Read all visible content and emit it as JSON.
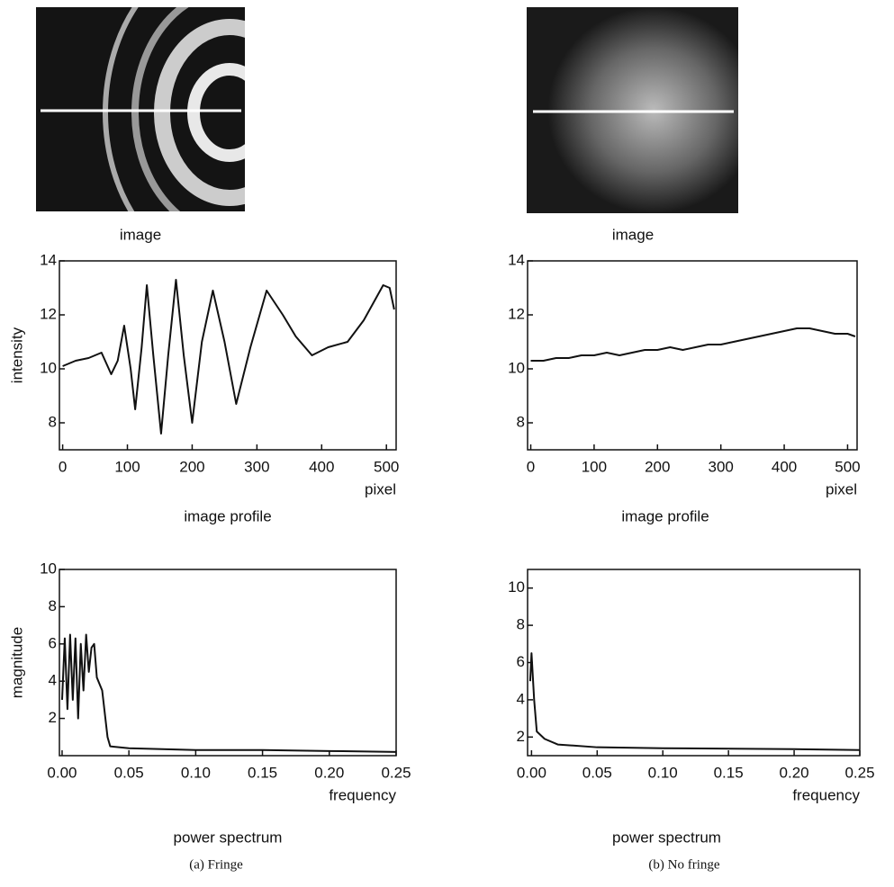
{
  "image_captions": [
    "image",
    "image"
  ],
  "panel_captions": [
    "(a) Fringe",
    "(b) No fringe"
  ],
  "chart_data": [
    {
      "type": "line",
      "caption": "image profile",
      "xlabel": "pixel",
      "ylabel": "intensity",
      "xlim": [
        -5,
        515
      ],
      "ylim": [
        7,
        14
      ],
      "xticks": [
        0,
        100,
        200,
        300,
        400,
        500
      ],
      "yticks": [
        8,
        10,
        12,
        14
      ],
      "series": [
        {
          "color": "#111111",
          "x": [
            0,
            20,
            40,
            60,
            75,
            85,
            95,
            105,
            112,
            122,
            130,
            140,
            152,
            163,
            175,
            187,
            200,
            215,
            232,
            250,
            268,
            290,
            315,
            340,
            360,
            385,
            410,
            440,
            465,
            495,
            505,
            512
          ],
          "values": [
            10.1,
            10.3,
            10.4,
            10.6,
            9.8,
            10.3,
            11.6,
            10.0,
            8.5,
            10.8,
            13.1,
            10.5,
            7.6,
            10.5,
            13.3,
            10.5,
            8.0,
            11.0,
            12.9,
            11.0,
            8.7,
            10.8,
            12.9,
            12.0,
            11.2,
            10.5,
            10.8,
            11.0,
            11.8,
            13.1,
            13.0,
            12.2
          ]
        }
      ]
    },
    {
      "type": "line",
      "caption": "image profile",
      "xlabel": "pixel",
      "xlim": [
        -5,
        515
      ],
      "ylim": [
        7,
        14
      ],
      "xticks": [
        0,
        100,
        200,
        300,
        400,
        500
      ],
      "yticks": [
        8,
        10,
        12,
        14
      ],
      "series": [
        {
          "color": "#111111",
          "x": [
            0,
            20,
            40,
            60,
            80,
            100,
            120,
            140,
            160,
            180,
            200,
            220,
            240,
            260,
            280,
            300,
            320,
            340,
            360,
            380,
            400,
            420,
            440,
            460,
            480,
            500,
            512
          ],
          "values": [
            10.3,
            10.3,
            10.4,
            10.4,
            10.5,
            10.5,
            10.6,
            10.5,
            10.6,
            10.7,
            10.7,
            10.8,
            10.7,
            10.8,
            10.9,
            10.9,
            11.0,
            11.1,
            11.2,
            11.3,
            11.4,
            11.5,
            11.5,
            11.4,
            11.3,
            11.3,
            11.2
          ]
        }
      ]
    },
    {
      "type": "line",
      "caption": "power spectrum",
      "xlabel": "frequency",
      "ylabel": "magnitude",
      "xlim": [
        -0.002,
        0.25
      ],
      "ylim": [
        0,
        10
      ],
      "xticks": [
        {
          "value": 0,
          "label": "0.00"
        },
        0.05,
        {
          "value": 0.1,
          "label": "0.10"
        },
        0.15,
        {
          "value": 0.2,
          "label": "0.20"
        },
        0.25
      ],
      "yticks": [
        2,
        4,
        6,
        8,
        10
      ],
      "series": [
        {
          "color": "#111111",
          "x": [
            0,
            0.002,
            0.004,
            0.006,
            0.008,
            0.01,
            0.012,
            0.014,
            0.016,
            0.018,
            0.02,
            0.022,
            0.024,
            0.026,
            0.03,
            0.034,
            0.036,
            0.05,
            0.1,
            0.15,
            0.2,
            0.25
          ],
          "values": [
            3,
            6.3,
            2.5,
            6.5,
            3,
            6.3,
            2,
            6,
            3.5,
            6.5,
            4.5,
            5.8,
            6,
            4.2,
            3.5,
            1,
            0.5,
            0.4,
            0.3,
            0.3,
            0.25,
            0.2
          ]
        }
      ]
    },
    {
      "type": "line",
      "caption": "power spectrum",
      "xlabel": "frequency",
      "xlim": [
        -0.003,
        0.25
      ],
      "ylim": [
        1,
        11
      ],
      "xticks": [
        {
          "value": 0,
          "label": "0.00"
        },
        0.05,
        {
          "value": 0.1,
          "label": "0.10"
        },
        0.15,
        {
          "value": 0.2,
          "label": "0.20"
        },
        0.25
      ],
      "yticks": [
        2,
        4,
        6,
        8,
        10
      ],
      "series": [
        {
          "color": "#111111",
          "x": [
            -0.001,
            0,
            0.002,
            0.004,
            0.01,
            0.02,
            0.05,
            0.1,
            0.2,
            0.25
          ],
          "values": [
            5,
            6.5,
            4,
            2.3,
            1.9,
            1.6,
            1.45,
            1.4,
            1.35,
            1.3
          ]
        }
      ]
    }
  ]
}
